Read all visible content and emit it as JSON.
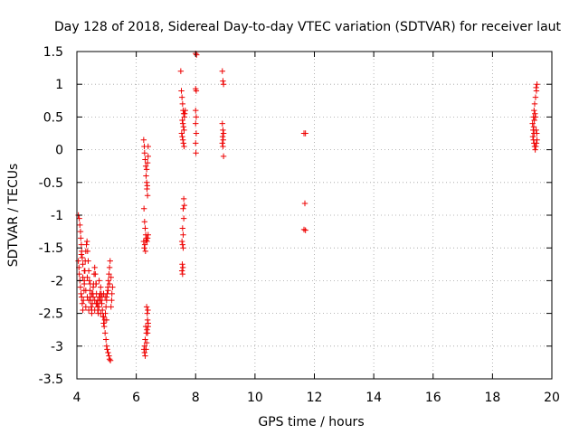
{
  "chart_data": {
    "type": "scatter",
    "title": "Day 128 of 2018, Sidereal Day-to-day VTEC variation (SDTVAR) for receiver laut",
    "xlabel": "GPS time / hours",
    "ylabel": "SDTVAR / TECUs",
    "xlim": [
      4,
      20
    ],
    "ylim": [
      -3.5,
      1.5
    ],
    "xticks": [
      4,
      6,
      8,
      10,
      12,
      14,
      16,
      18,
      20
    ],
    "xtick_labels": [
      "4",
      "6",
      "8",
      "10",
      "12",
      "14",
      "16",
      "18",
      "20"
    ],
    "yticks": [
      1.5,
      1,
      0.5,
      0,
      -0.5,
      -1,
      -1.5,
      -2,
      -2.5,
      -3,
      -3.5
    ],
    "ytick_labels": [
      "1.5",
      "1",
      "0.5",
      "0",
      "-0.5",
      "-1",
      "-1.5",
      "-2",
      "-2.5",
      "-3",
      "-3.5"
    ],
    "grid": true,
    "marker": "plus",
    "color": "#ee0000",
    "series": [
      {
        "name": "SDTVAR",
        "points": [
          [
            4.05,
            -1.0
          ],
          [
            4.08,
            -1.05
          ],
          [
            4.1,
            -1.15
          ],
          [
            4.12,
            -1.25
          ],
          [
            4.13,
            -1.35
          ],
          [
            4.15,
            -1.45
          ],
          [
            4.16,
            -1.55
          ],
          [
            4.18,
            -1.65
          ],
          [
            4.05,
            -1.7
          ],
          [
            4.07,
            -1.8
          ],
          [
            4.08,
            -1.9
          ],
          [
            4.1,
            -2.0
          ],
          [
            4.12,
            -2.1
          ],
          [
            4.14,
            -2.2
          ],
          [
            4.16,
            -2.25
          ],
          [
            4.18,
            -2.35
          ],
          [
            4.2,
            -2.45
          ],
          [
            4.22,
            -2.3
          ],
          [
            4.24,
            -2.15
          ],
          [
            4.25,
            -2.0
          ],
          [
            4.27,
            -1.85
          ],
          [
            4.28,
            -1.7
          ],
          [
            4.3,
            -1.55
          ],
          [
            4.32,
            -1.45
          ],
          [
            4.34,
            -1.4
          ],
          [
            4.36,
            -1.55
          ],
          [
            4.38,
            -1.7
          ],
          [
            4.4,
            -1.85
          ],
          [
            4.42,
            -2.0
          ],
          [
            4.44,
            -2.15
          ],
          [
            4.46,
            -2.3
          ],
          [
            4.48,
            -2.4
          ],
          [
            4.5,
            -2.45
          ],
          [
            4.52,
            -2.35
          ],
          [
            4.54,
            -2.2
          ],
          [
            4.56,
            -2.05
          ],
          [
            4.58,
            -1.9
          ],
          [
            4.6,
            -1.8
          ],
          [
            4.62,
            -1.9
          ],
          [
            4.64,
            -2.05
          ],
          [
            4.66,
            -2.2
          ],
          [
            4.68,
            -2.35
          ],
          [
            4.7,
            -2.45
          ],
          [
            4.72,
            -2.5
          ],
          [
            4.74,
            -2.4
          ],
          [
            4.76,
            -2.3
          ],
          [
            4.78,
            -2.2
          ],
          [
            4.8,
            -2.1
          ],
          [
            4.82,
            -2.2
          ],
          [
            4.84,
            -2.35
          ],
          [
            4.86,
            -2.45
          ],
          [
            4.88,
            -2.55
          ],
          [
            4.9,
            -2.65
          ],
          [
            4.92,
            -2.7
          ],
          [
            4.94,
            -2.6
          ],
          [
            4.96,
            -2.5
          ],
          [
            4.98,
            -2.4
          ],
          [
            5.0,
            -2.3
          ],
          [
            5.02,
            -2.2
          ],
          [
            5.04,
            -2.1
          ],
          [
            5.06,
            -2.0
          ],
          [
            5.08,
            -1.9
          ],
          [
            5.1,
            -1.8
          ],
          [
            5.12,
            -1.7
          ],
          [
            4.2,
            -1.95
          ],
          [
            4.25,
            -2.05
          ],
          [
            4.3,
            -2.15
          ],
          [
            4.35,
            -2.25
          ],
          [
            4.4,
            -2.3
          ],
          [
            4.45,
            -2.25
          ],
          [
            4.5,
            -2.2
          ],
          [
            4.55,
            -2.25
          ],
          [
            4.6,
            -2.3
          ],
          [
            4.65,
            -2.35
          ],
          [
            4.7,
            -2.3
          ],
          [
            4.75,
            -2.25
          ],
          [
            4.8,
            -2.3
          ],
          [
            4.85,
            -2.25
          ],
          [
            4.9,
            -2.2
          ],
          [
            4.95,
            -2.25
          ],
          [
            4.3,
            -2.4
          ],
          [
            4.4,
            -2.45
          ],
          [
            4.5,
            -2.5
          ],
          [
            4.6,
            -2.45
          ],
          [
            4.7,
            -2.4
          ],
          [
            4.8,
            -2.5
          ],
          [
            4.9,
            -2.55
          ],
          [
            5.0,
            -2.6
          ],
          [
            4.95,
            -2.8
          ],
          [
            4.98,
            -2.9
          ],
          [
            5.0,
            -3.0
          ],
          [
            5.02,
            -3.05
          ],
          [
            5.05,
            -3.1
          ],
          [
            5.08,
            -3.15
          ],
          [
            5.1,
            -3.2
          ],
          [
            5.13,
            -3.22
          ],
          [
            5.15,
            -2.4
          ],
          [
            5.17,
            -2.3
          ],
          [
            5.18,
            -2.2
          ],
          [
            5.2,
            -2.1
          ],
          [
            5.15,
            -1.95
          ],
          [
            5.1,
            -2.05
          ],
          [
            5.05,
            -2.15
          ],
          [
            5.0,
            -2.25
          ],
          [
            4.15,
            -1.6
          ],
          [
            4.2,
            -1.75
          ],
          [
            4.25,
            -1.85
          ],
          [
            4.35,
            -1.95
          ],
          [
            4.45,
            -2.05
          ],
          [
            4.55,
            -2.1
          ],
          [
            4.65,
            -2.05
          ],
          [
            4.75,
            -2.0
          ],
          [
            6.25,
            0.15
          ],
          [
            6.27,
            0.05
          ],
          [
            6.28,
            -0.05
          ],
          [
            6.3,
            -0.15
          ],
          [
            6.32,
            -0.25
          ],
          [
            6.33,
            -0.4
          ],
          [
            6.35,
            -0.5
          ],
          [
            6.36,
            -0.6
          ],
          [
            6.38,
            -0.7
          ],
          [
            6.4,
            0.05
          ],
          [
            6.4,
            -0.1
          ],
          [
            6.38,
            -0.2
          ],
          [
            6.35,
            -0.3
          ],
          [
            6.37,
            -0.55
          ],
          [
            6.26,
            -0.9
          ],
          [
            6.28,
            -1.1
          ],
          [
            6.3,
            -1.2
          ],
          [
            6.32,
            -1.3
          ],
          [
            6.34,
            -1.35
          ],
          [
            6.36,
            -1.4
          ],
          [
            6.38,
            -1.35
          ],
          [
            6.4,
            -1.3
          ],
          [
            6.25,
            -1.4
          ],
          [
            6.27,
            -1.5
          ],
          [
            6.29,
            -1.45
          ],
          [
            6.31,
            -1.55
          ],
          [
            6.33,
            -1.38
          ],
          [
            6.35,
            -2.4
          ],
          [
            6.37,
            -2.5
          ],
          [
            6.38,
            -2.6
          ],
          [
            6.4,
            -2.7
          ],
          [
            6.36,
            -2.75
          ],
          [
            6.34,
            -2.8
          ],
          [
            6.32,
            -2.7
          ],
          [
            6.3,
            -2.9
          ],
          [
            6.28,
            -3.0
          ],
          [
            6.26,
            -3.05
          ],
          [
            6.28,
            -3.1
          ],
          [
            6.3,
            -3.15
          ],
          [
            6.33,
            -3.05
          ],
          [
            6.35,
            -2.95
          ],
          [
            6.38,
            -2.8
          ],
          [
            6.4,
            -2.65
          ],
          [
            6.39,
            -2.45
          ],
          [
            7.5,
            1.2
          ],
          [
            7.52,
            0.9
          ],
          [
            7.54,
            0.8
          ],
          [
            7.56,
            0.7
          ],
          [
            7.58,
            0.6
          ],
          [
            7.6,
            0.55
          ],
          [
            7.62,
            0.5
          ],
          [
            7.55,
            0.45
          ],
          [
            7.57,
            0.4
          ],
          [
            7.59,
            0.35
          ],
          [
            7.61,
            0.3
          ],
          [
            7.53,
            0.25
          ],
          [
            7.55,
            0.2
          ],
          [
            7.57,
            0.15
          ],
          [
            7.59,
            0.1
          ],
          [
            7.61,
            0.05
          ],
          [
            7.63,
            0.55
          ],
          [
            7.65,
            0.6
          ],
          [
            7.6,
            -0.75
          ],
          [
            7.62,
            -0.85
          ],
          [
            7.58,
            -0.9
          ],
          [
            7.6,
            -1.05
          ],
          [
            7.56,
            -1.2
          ],
          [
            7.58,
            -1.3
          ],
          [
            7.54,
            -1.4
          ],
          [
            7.56,
            -1.45
          ],
          [
            7.58,
            -1.5
          ],
          [
            7.55,
            -1.75
          ],
          [
            7.57,
            -1.8
          ],
          [
            7.54,
            -1.85
          ],
          [
            7.56,
            -1.9
          ],
          [
            8.0,
            1.47
          ],
          [
            8.03,
            1.45
          ],
          [
            8.0,
            0.93
          ],
          [
            8.02,
            0.9
          ],
          [
            8.0,
            0.6
          ],
          [
            8.02,
            0.5
          ],
          [
            8.0,
            0.4
          ],
          [
            8.02,
            0.25
          ],
          [
            8.0,
            0.1
          ],
          [
            8.01,
            -0.05
          ],
          [
            8.9,
            1.2
          ],
          [
            8.92,
            1.05
          ],
          [
            8.94,
            1.0
          ],
          [
            8.9,
            0.4
          ],
          [
            8.92,
            0.3
          ],
          [
            8.94,
            0.25
          ],
          [
            8.91,
            0.2
          ],
          [
            8.93,
            0.15
          ],
          [
            8.9,
            0.1
          ],
          [
            8.92,
            0.05
          ],
          [
            8.94,
            -0.1
          ],
          [
            11.65,
            0.25
          ],
          [
            11.7,
            0.25
          ],
          [
            11.68,
            -0.82
          ],
          [
            11.65,
            -1.22
          ],
          [
            11.7,
            -1.23
          ],
          [
            19.35,
            0.4
          ],
          [
            19.38,
            0.5
          ],
          [
            19.4,
            0.6
          ],
          [
            19.42,
            0.7
          ],
          [
            19.45,
            0.8
          ],
          [
            19.48,
            0.9
          ],
          [
            19.5,
            1.0
          ],
          [
            19.47,
            0.95
          ],
          [
            19.36,
            0.2
          ],
          [
            19.38,
            0.15
          ],
          [
            19.4,
            0.1
          ],
          [
            19.42,
            0.05
          ],
          [
            19.44,
            0.0
          ],
          [
            19.46,
            0.05
          ],
          [
            19.48,
            0.1
          ],
          [
            19.5,
            0.15
          ],
          [
            19.37,
            0.3
          ],
          [
            19.39,
            0.35
          ],
          [
            19.41,
            0.45
          ],
          [
            19.43,
            0.55
          ],
          [
            19.45,
            0.5
          ],
          [
            19.47,
            0.3
          ],
          [
            19.49,
            0.25
          ],
          [
            19.4,
            0.25
          ]
        ]
      }
    ]
  }
}
